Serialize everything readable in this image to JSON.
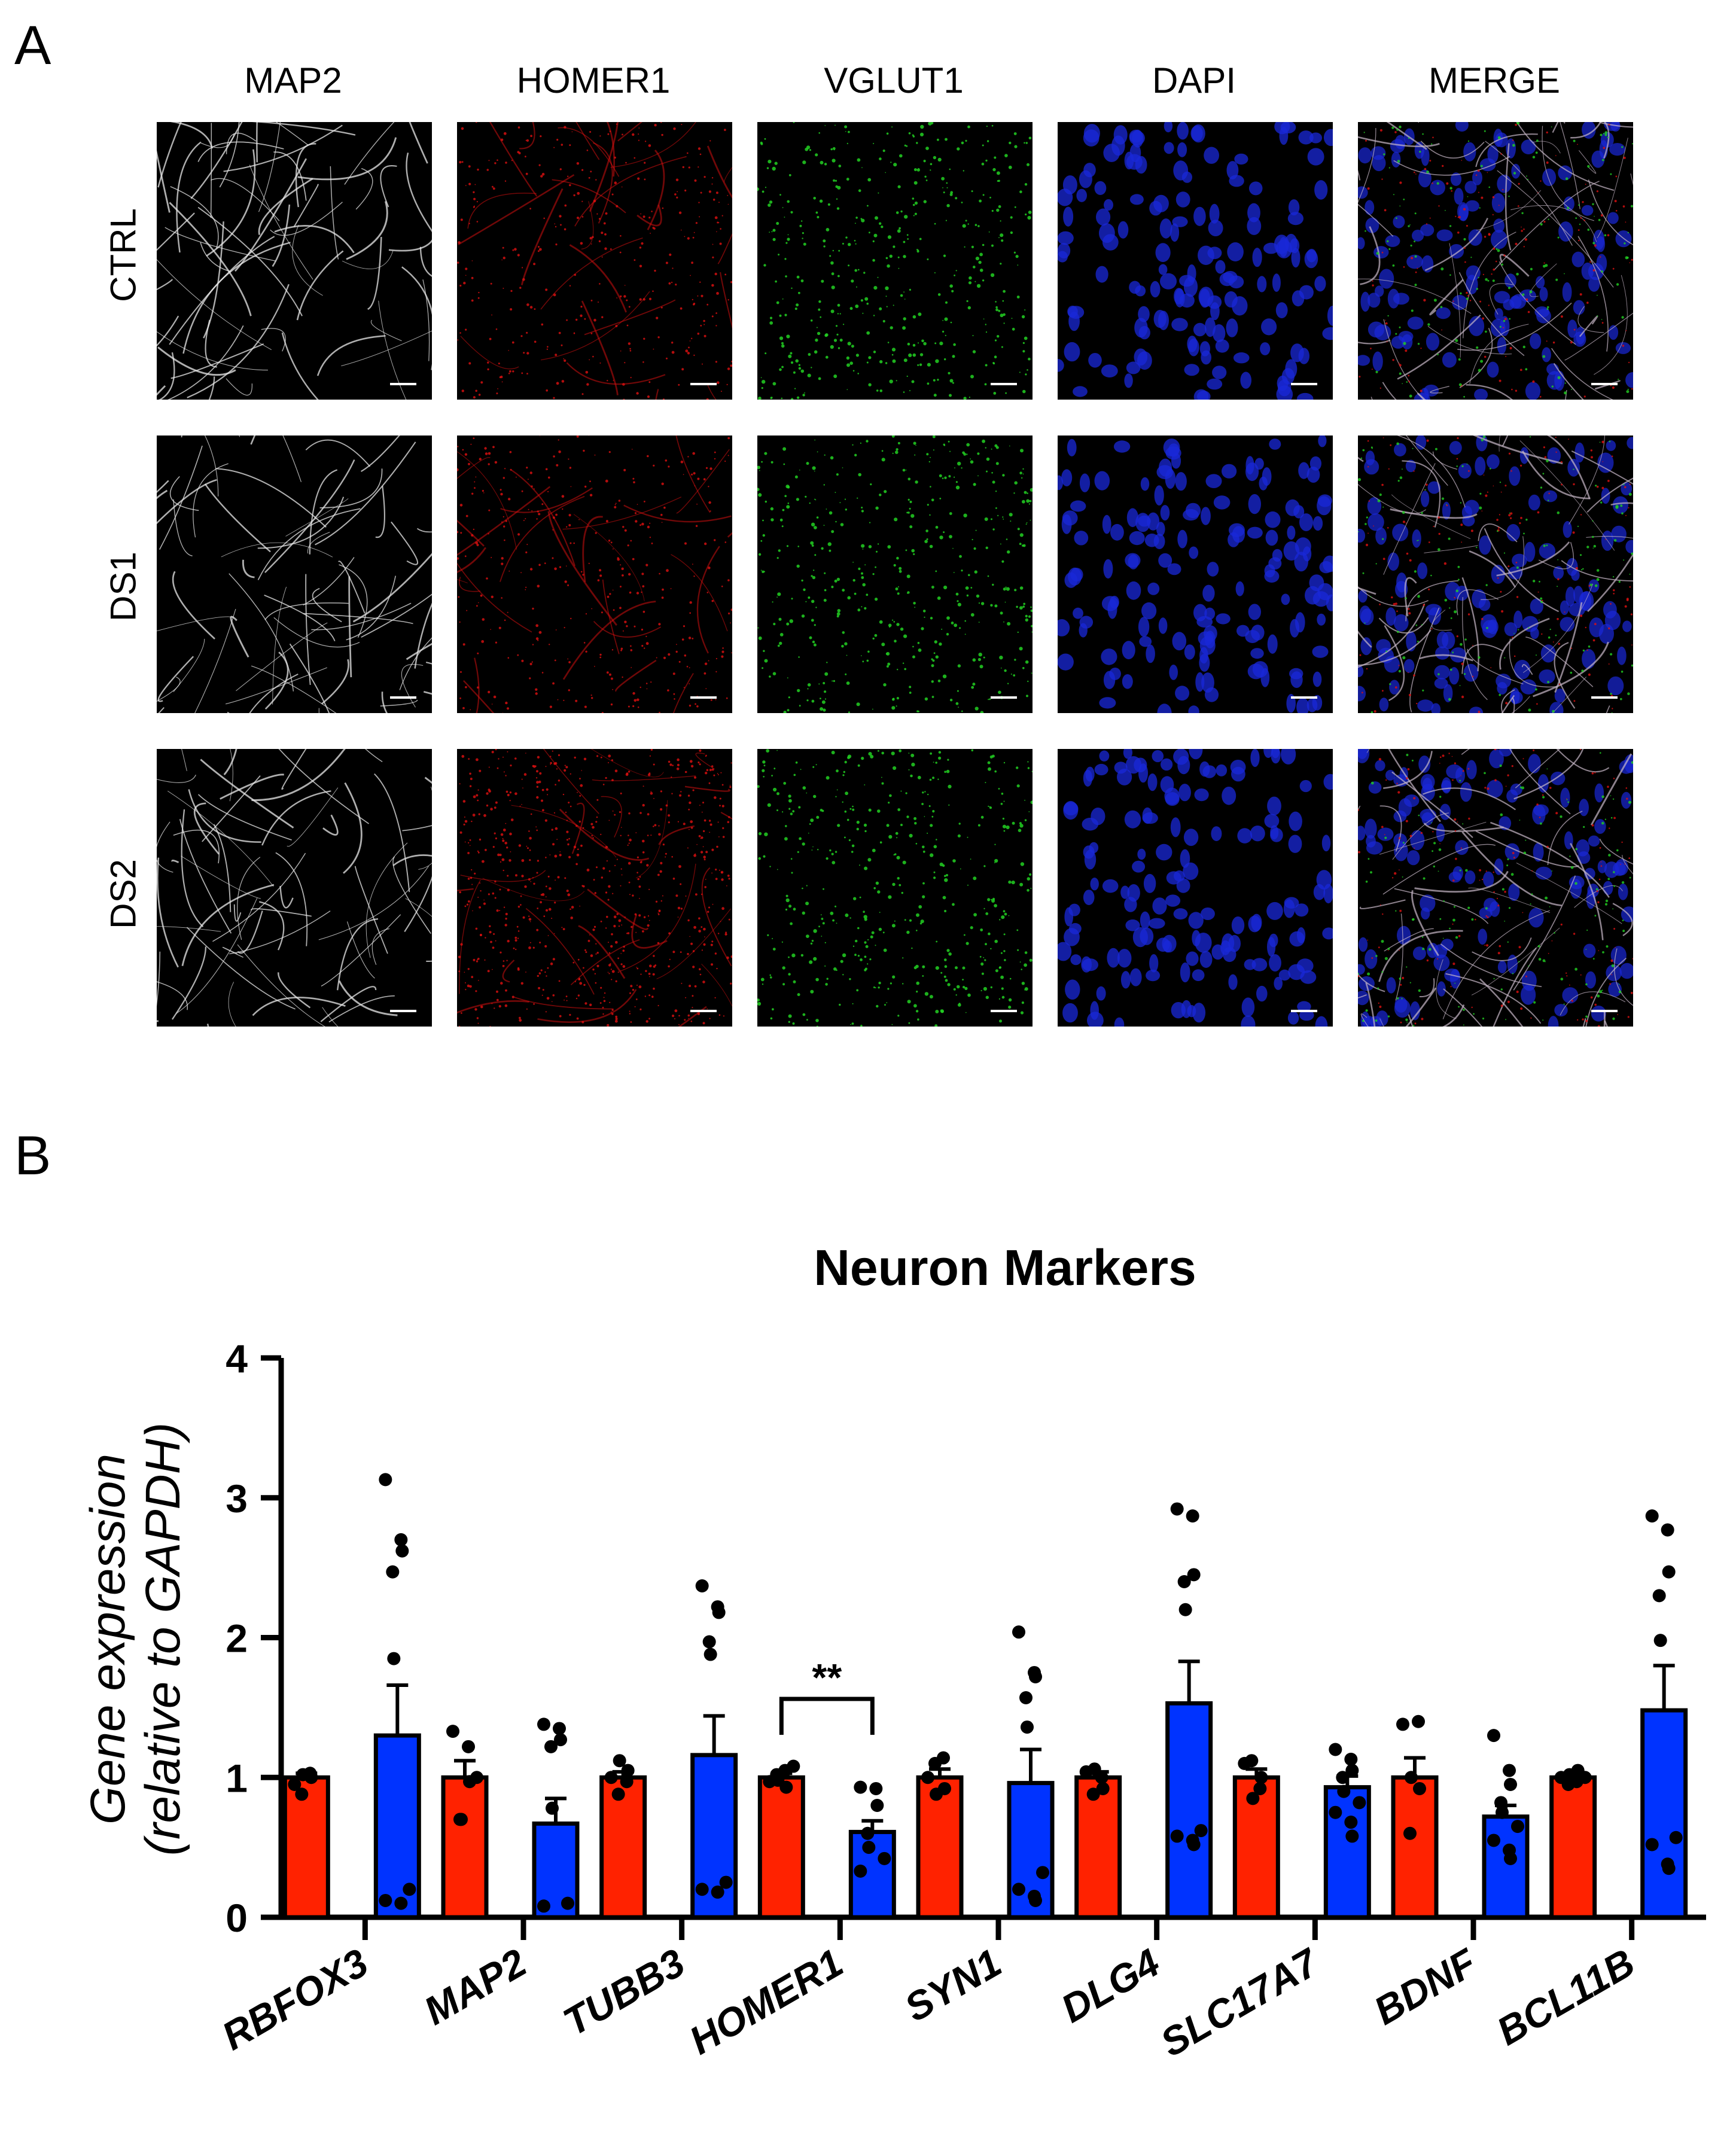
{
  "panel_a": {
    "letter": "A",
    "columns": [
      "MAP2",
      "HOMER1",
      "VGLUT1",
      "DAPI",
      "MERGE"
    ],
    "rows": [
      "CTRL",
      "DS1",
      "DS2"
    ],
    "channel_colors": {
      "MAP2": "#e8e8e8",
      "HOMER1": "#e01010",
      "VGLUT1": "#22d022",
      "DAPI": "#1a28d8",
      "MERGE": "#c8b8c8"
    },
    "scale_bar_color": "#ffffff"
  },
  "panel_b": {
    "letter": "B"
  },
  "chart_data": {
    "type": "bar",
    "title": "Neuron Markers",
    "ylabel_line1": "Gene expression",
    "ylabel_line2": "(relative to GAPDH)",
    "ylim": [
      0,
      4
    ],
    "yticks": [
      "0",
      "1",
      "2",
      "3",
      "4"
    ],
    "categories": [
      "RBFOX3",
      "MAP2",
      "TUBB3",
      "HOMER1",
      "SYN1",
      "DLG4",
      "SLC17A7",
      "BDNF",
      "BCL11B"
    ],
    "series": [
      {
        "color": "#ff2200",
        "values": [
          1.0,
          1.0,
          1.0,
          1.0,
          1.0,
          1.0,
          1.0,
          1.0,
          1.0
        ],
        "errors": [
          0.03,
          0.12,
          0.04,
          0.03,
          0.06,
          0.04,
          0.06,
          0.14,
          0.02
        ],
        "points": [
          [
            0.95,
            1.03,
            1.0,
            0.88,
            1.02
          ],
          [
            1.33,
            1.22,
            0.97,
            0.7,
            0.7,
            1.0
          ],
          [
            1.0,
            0.97,
            1.05,
            0.88,
            1.12
          ],
          [
            0.97,
            1.05,
            0.93,
            1.02,
            0.98,
            1.08
          ],
          [
            1.0,
            1.14,
            0.92,
            1.1,
            0.88
          ],
          [
            1.04,
            1.0,
            0.92,
            0.88,
            1.06
          ],
          [
            1.1,
            0.92,
            1.0,
            1.12,
            0.85
          ],
          [
            1.38,
            1.4,
            0.92,
            0.6,
            1.0
          ],
          [
            1.0,
            0.97,
            1.05,
            0.95,
            1.02,
            1.0
          ]
        ]
      },
      {
        "color": "#0033ff",
        "values": [
          1.3,
          0.67,
          1.16,
          0.61,
          0.96,
          1.53,
          0.93,
          0.72,
          1.48
        ],
        "errors": [
          0.36,
          0.18,
          0.28,
          0.08,
          0.24,
          0.3,
          0.08,
          0.08,
          0.32
        ],
        "points": [
          [
            3.13,
            2.7,
            2.62,
            2.47,
            1.85,
            0.2,
            0.12,
            0.1
          ],
          [
            1.38,
            1.35,
            1.27,
            1.22,
            0.78,
            0.1,
            0.08
          ],
          [
            2.37,
            2.22,
            2.18,
            1.97,
            1.88,
            0.25,
            0.2,
            0.18
          ],
          [
            0.93,
            0.92,
            0.8,
            0.6,
            0.5,
            0.42,
            0.33
          ],
          [
            2.04,
            1.75,
            1.72,
            1.57,
            1.36,
            0.32,
            0.2,
            0.15,
            0.12
          ],
          [
            2.92,
            2.87,
            2.45,
            2.4,
            2.2,
            0.62,
            0.58,
            0.55,
            0.52
          ],
          [
            1.2,
            1.13,
            1.05,
            1.0,
            0.9,
            0.82,
            0.75,
            0.68,
            0.58
          ],
          [
            1.3,
            1.05,
            0.95,
            0.82,
            0.75,
            0.65,
            0.55,
            0.48,
            0.42
          ],
          [
            2.87,
            2.77,
            2.47,
            2.3,
            1.98,
            0.57,
            0.52,
            0.38,
            0.35
          ]
        ]
      }
    ],
    "significance": [
      {
        "category": "HOMER1",
        "label": "**"
      }
    ]
  }
}
